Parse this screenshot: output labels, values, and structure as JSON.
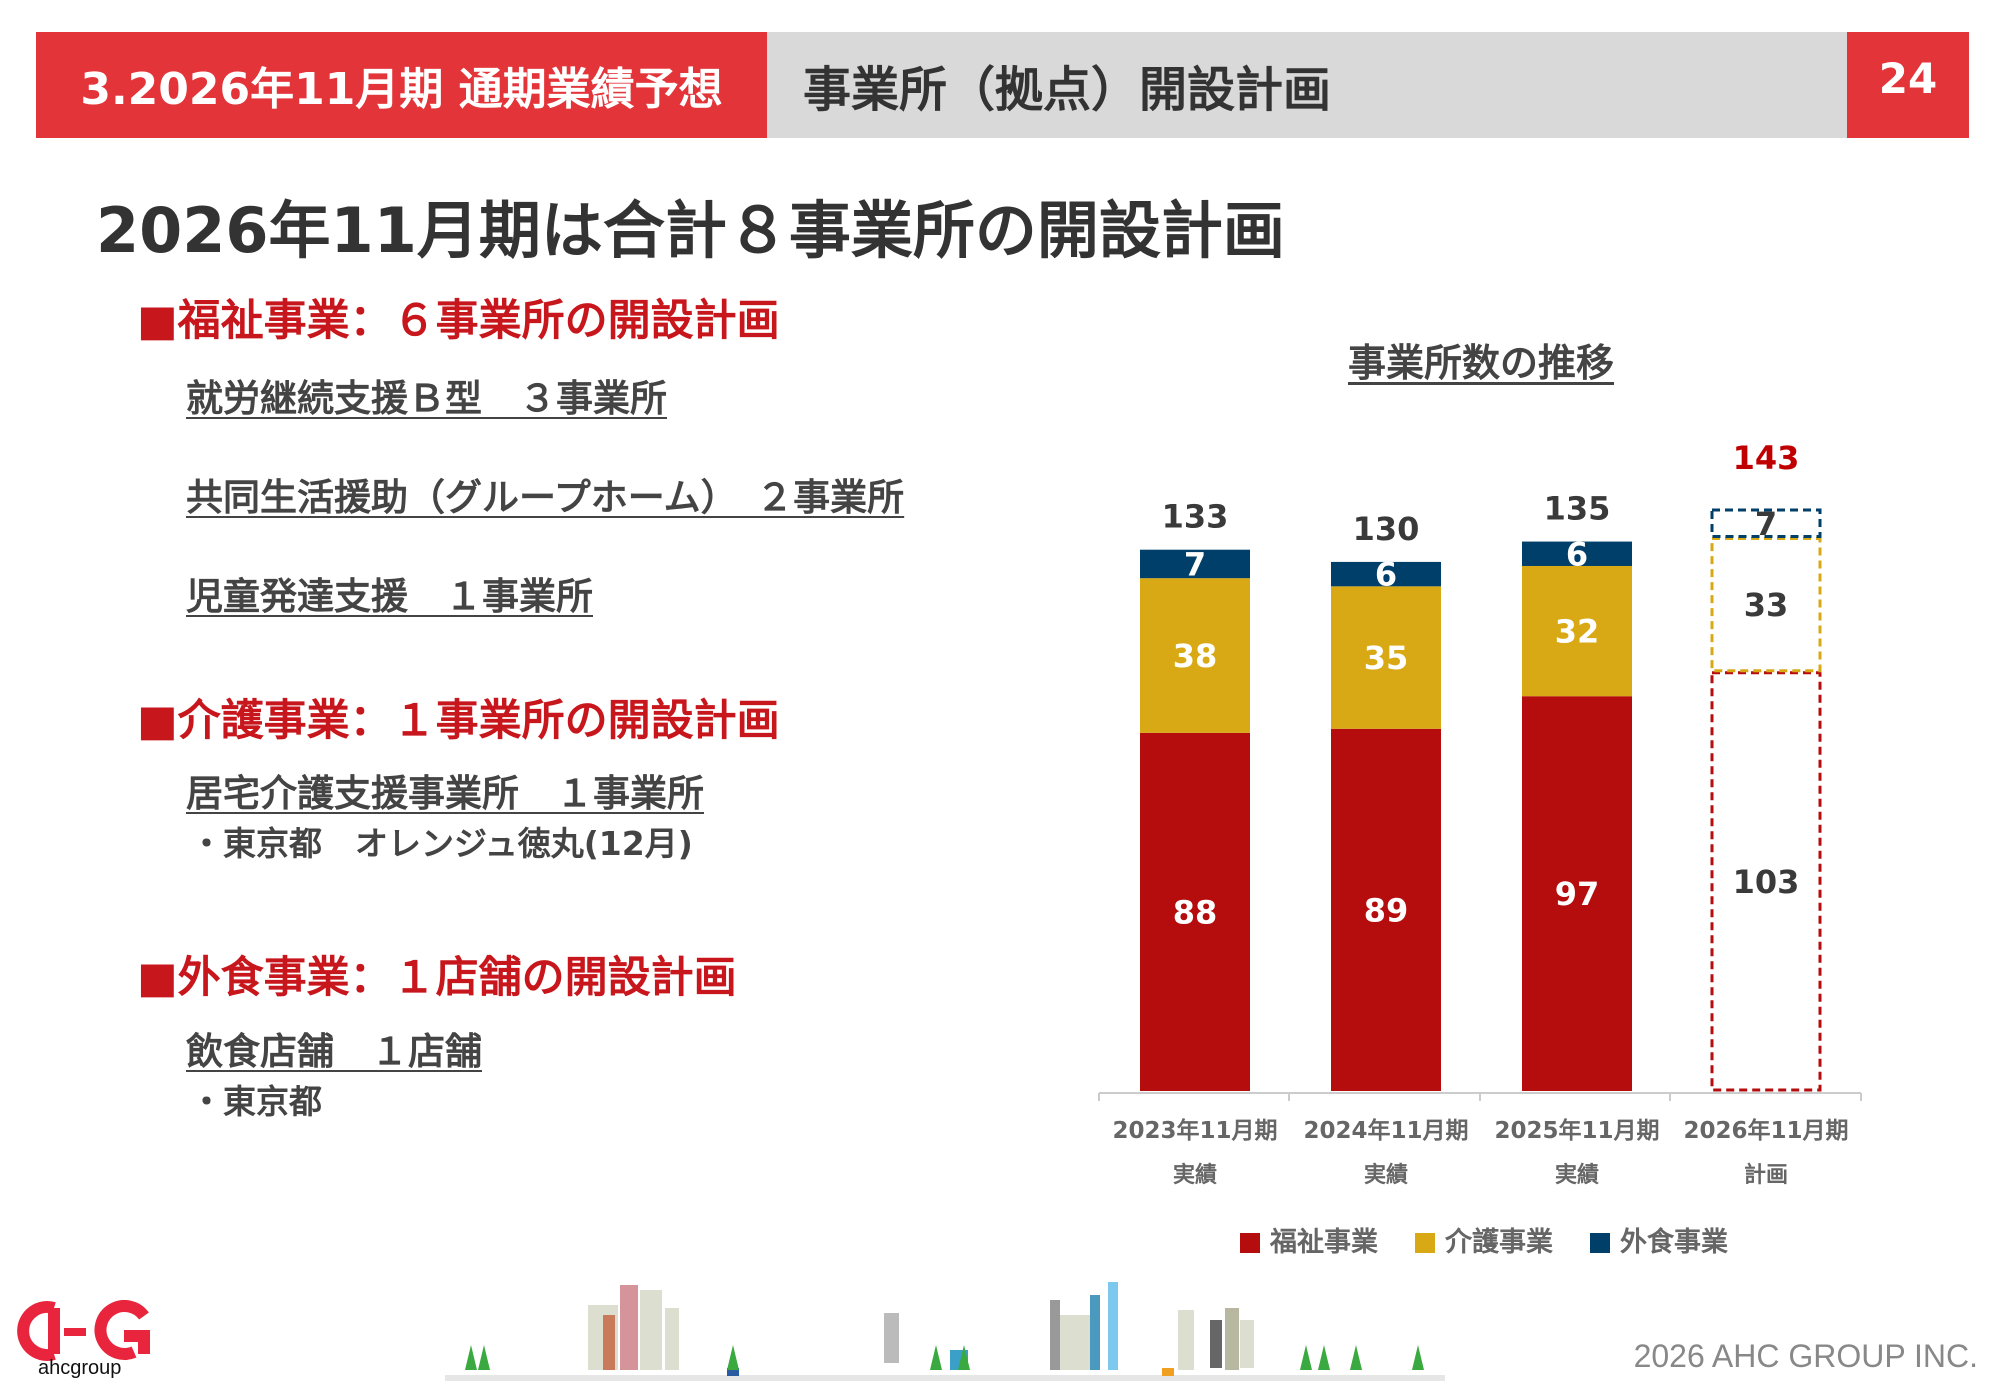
{
  "header": {
    "section": "3.2026年11月期 通期業績予想",
    "title": "事業所（拠点）開設計画",
    "page": "24"
  },
  "main_title": "2026年11月期は合計８事業所の開設計画",
  "sections": [
    {
      "heading": "■福祉事業：６事業所の開設計画",
      "items": [
        "就労継続支援Ｂ型　３事業所",
        "共同生活援助（グループホーム）　２事業所",
        "児童発達支援　１事業所"
      ]
    },
    {
      "heading": "■介護事業：１事業所の開設計画",
      "items": [
        "居宅介護支援事業所　１事業所"
      ],
      "notes": [
        "・東京都　オレンジュ徳丸(12月)"
      ]
    },
    {
      "heading": "■外食事業：１店舗の開設計画",
      "items": [
        "飲食店舗　１店舗"
      ],
      "notes": [
        "・東京都"
      ]
    }
  ],
  "chart_data": {
    "type": "bar",
    "stacked": true,
    "title": "事業所数の推移",
    "categories": [
      [
        "2023年11月期",
        "実績"
      ],
      [
        "2024年11月期",
        "実績"
      ],
      [
        "2025年11月期",
        "実績"
      ],
      [
        "2026年11月期",
        "計画"
      ]
    ],
    "series": [
      {
        "name": "福祉事業",
        "color": "#b50d0e",
        "values": [
          88,
          89,
          97,
          103
        ]
      },
      {
        "name": "介護事業",
        "color": "#d8a914",
        "values": [
          38,
          35,
          32,
          33
        ]
      },
      {
        "name": "外食事業",
        "color": "#003f6a",
        "values": [
          7,
          6,
          6,
          7
        ]
      }
    ],
    "totals": [
      133,
      130,
      135,
      143
    ],
    "planned_index": 3,
    "planned_total_color": "#c00000",
    "ylim": [
      0,
      143
    ]
  },
  "footer": {
    "logo_text": "ahcgroup",
    "copyright": "2026 AHC GROUP INC."
  }
}
